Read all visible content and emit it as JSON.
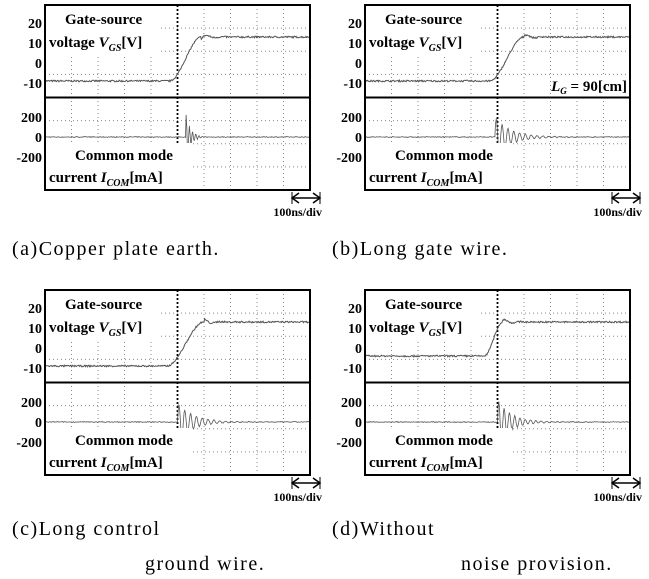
{
  "panels": [
    {
      "upper_label": {
        "line1": "Gate-source",
        "prefix": "voltage ",
        "symbol": "V",
        "subscript": "GS",
        "unit": "[V]"
      },
      "lower_label": {
        "line1": "Common mode",
        "prefix": "current ",
        "symbol": "I",
        "subscript": "COM",
        "unit": "[mA]"
      },
      "upper_ticks": [
        20,
        10,
        0,
        -10
      ],
      "lower_ticks": [
        200,
        0,
        -200
      ],
      "time_scale": "100ns/div",
      "caption": [
        "(a)Copper plate earth."
      ]
    },
    {
      "upper_label": {
        "line1": "Gate-source",
        "prefix": "voltage ",
        "symbol": "V",
        "subscript": "GS",
        "unit": "[V]"
      },
      "lower_label": {
        "line1": "Common mode",
        "prefix": "current ",
        "symbol": "I",
        "subscript": "COM",
        "unit": "[mA]"
      },
      "annotation": {
        "symbol": "L",
        "subscript": "G",
        "text": " = 90[cm]"
      },
      "upper_ticks": [
        20,
        10,
        0,
        -10
      ],
      "lower_ticks": [
        200,
        0,
        -200
      ],
      "time_scale": "100ns/div",
      "caption": [
        "(b)Long gate wire."
      ]
    },
    {
      "upper_label": {
        "line1": "Gate-source",
        "prefix": "voltage ",
        "symbol": "V",
        "subscript": "GS",
        "unit": "[V]"
      },
      "lower_label": {
        "line1": "Common mode",
        "prefix": "current ",
        "symbol": "I",
        "subscript": "COM",
        "unit": "[mA]"
      },
      "upper_ticks": [
        20,
        10,
        0,
        -10
      ],
      "lower_ticks": [
        200,
        0,
        -200
      ],
      "time_scale": "100ns/div",
      "caption": [
        "(c)Long control",
        "ground wire."
      ]
    },
    {
      "upper_label": {
        "line1": "Gate-source",
        "prefix": "voltage ",
        "symbol": "V",
        "subscript": "GS",
        "unit": "[V]"
      },
      "lower_label": {
        "line1": "Common mode",
        "prefix": "current ",
        "symbol": "I",
        "subscript": "COM",
        "unit": "[mA]"
      },
      "upper_ticks": [
        20,
        10,
        0,
        -10
      ],
      "lower_ticks": [
        200,
        0,
        -200
      ],
      "time_scale": "100ns/div",
      "caption": [
        "(d)Without",
        "noise provision."
      ]
    }
  ]
}
